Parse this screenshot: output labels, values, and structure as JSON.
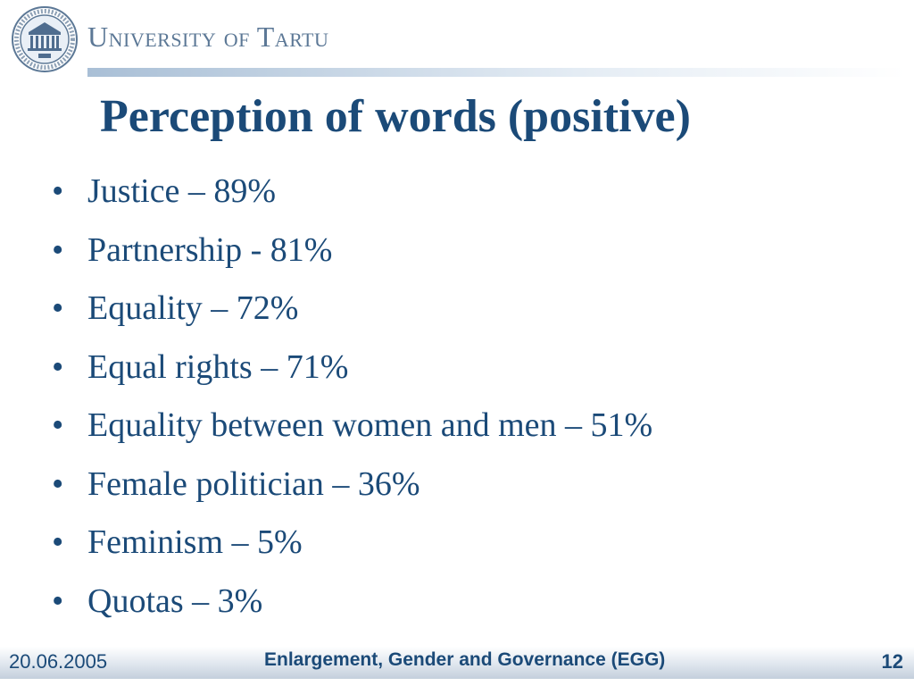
{
  "header": {
    "university_name": "University of Tartu",
    "seal": {
      "icon": "university-seal-icon",
      "ring_text": "UNIVERSITAS TARTUENSIS",
      "year": "1632"
    }
  },
  "title": "Perception of words (positive)",
  "bullets": [
    {
      "text": "Justice – 89%"
    },
    {
      "text": "Partnership - 81%"
    },
    {
      "text": "Equality – 72%"
    },
    {
      "text": "Equal rights – 71%"
    },
    {
      "text": "Equality between women and men – 51%"
    },
    {
      "text": "Female politician – 36%"
    },
    {
      "text": "Feminism – 5%"
    },
    {
      "text": "Quotas – 3%"
    }
  ],
  "bullet_symbol": "•",
  "footer": {
    "date": "20.06.2005",
    "title": "Enlargement, Gender and Governance (EGG)",
    "page_number": "12"
  },
  "colors": {
    "primary": "#1b4a78",
    "header_text": "#5c7896"
  }
}
